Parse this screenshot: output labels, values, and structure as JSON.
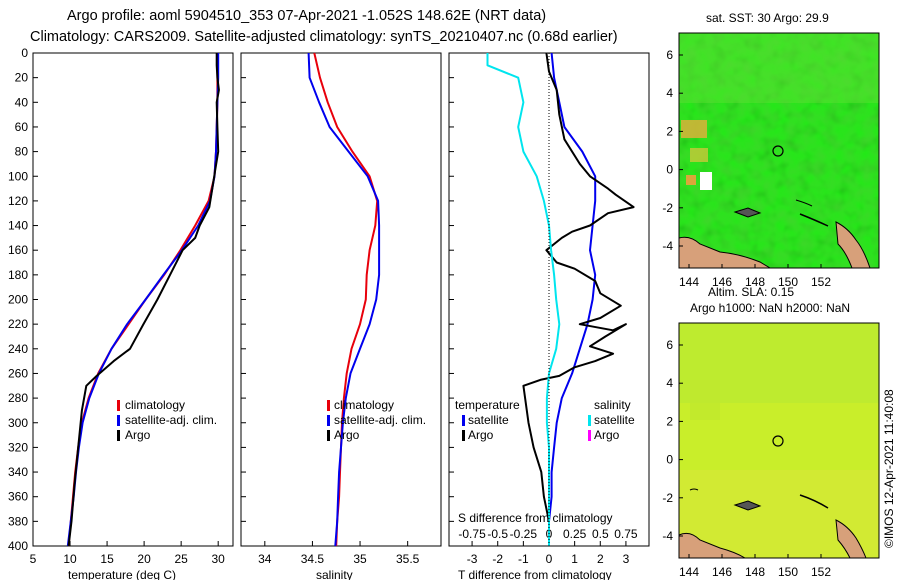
{
  "header": {
    "line1": "Argo profile: aoml 5904510_353 07-Apr-2021 -1.052S 148.62E (NRT data)",
    "line2": "Climatology: CARS2009. Satellite-adjusted climatology: synTS_20210407.nc (0.68d earlier)"
  },
  "colors": {
    "climatology": "#e8000b",
    "satellite": "#0000ee",
    "argo": "#000000",
    "satellite_salinity": "#00e5ee",
    "argo_salinity": "#ff00ff"
  },
  "chart_data": [
    {
      "type": "line",
      "name": "temperature",
      "xlabel": "temperature (deg C)",
      "ylabel": "",
      "xlim": [
        5,
        32
      ],
      "ylim": [
        400,
        0
      ],
      "xticks": [
        5,
        10,
        15,
        20,
        25,
        30
      ],
      "yticks": [
        0,
        20,
        40,
        60,
        80,
        100,
        120,
        140,
        160,
        180,
        200,
        220,
        240,
        260,
        280,
        300,
        320,
        340,
        360,
        380,
        400
      ],
      "legend": [
        "climatology",
        "satellite-adj. clim.",
        "Argo"
      ],
      "series": [
        {
          "name": "climatology",
          "points": [
            [
              29.9,
              0
            ],
            [
              29.9,
              20
            ],
            [
              29.9,
              40
            ],
            [
              29.8,
              60
            ],
            [
              29.7,
              80
            ],
            [
              29.5,
              100
            ],
            [
              28.7,
              120
            ],
            [
              26.9,
              140
            ],
            [
              24.9,
              160
            ],
            [
              22.7,
              180
            ],
            [
              20.2,
              200
            ],
            [
              17.9,
              220
            ],
            [
              15.6,
              240
            ],
            [
              13.8,
              260
            ],
            [
              12.5,
              280
            ],
            [
              11.6,
              300
            ],
            [
              11.1,
              320
            ],
            [
              10.7,
              340
            ],
            [
              10.4,
              360
            ],
            [
              10.1,
              380
            ],
            [
              9.8,
              400
            ]
          ]
        },
        {
          "name": "satellite-adj. clim.",
          "points": [
            [
              30.0,
              0
            ],
            [
              30.0,
              20
            ],
            [
              29.9,
              40
            ],
            [
              29.8,
              60
            ],
            [
              29.7,
              80
            ],
            [
              29.5,
              100
            ],
            [
              28.9,
              120
            ],
            [
              27.3,
              140
            ],
            [
              25.1,
              160
            ],
            [
              22.6,
              180
            ],
            [
              20.2,
              200
            ],
            [
              17.7,
              220
            ],
            [
              15.6,
              240
            ],
            [
              13.9,
              260
            ],
            [
              12.6,
              280
            ],
            [
              11.7,
              300
            ],
            [
              11.2,
              320
            ],
            [
              10.8,
              340
            ],
            [
              10.5,
              360
            ],
            [
              10.1,
              380
            ],
            [
              9.7,
              400
            ]
          ]
        },
        {
          "name": "Argo",
          "points": [
            [
              29.8,
              0
            ],
            [
              29.8,
              10
            ],
            [
              29.9,
              20
            ],
            [
              30.1,
              30
            ],
            [
              29.8,
              40
            ],
            [
              29.9,
              60
            ],
            [
              30.0,
              80
            ],
            [
              29.6,
              95
            ],
            [
              29.2,
              110
            ],
            [
              28.8,
              125
            ],
            [
              27.5,
              140
            ],
            [
              26.9,
              150
            ],
            [
              25.2,
              160
            ],
            [
              23.5,
              180
            ],
            [
              21.8,
              200
            ],
            [
              19.9,
              220
            ],
            [
              18.1,
              240
            ],
            [
              15.9,
              250
            ],
            [
              13.6,
              262
            ],
            [
              12.2,
              270
            ],
            [
              11.6,
              290
            ],
            [
              11.1,
              320
            ],
            [
              10.6,
              350
            ],
            [
              10.2,
              380
            ],
            [
              9.8,
              400
            ]
          ]
        }
      ]
    },
    {
      "type": "line",
      "name": "salinity",
      "xlabel": "salinity",
      "xlim": [
        33.75,
        35.85
      ],
      "ylim": [
        400,
        0
      ],
      "xticks": [
        34,
        34.5,
        35,
        35.5
      ],
      "legend": [
        "climatology",
        "satellite-adj. clim.",
        "Argo"
      ],
      "series": [
        {
          "name": "climatology",
          "points": [
            [
              34.52,
              0
            ],
            [
              34.58,
              20
            ],
            [
              34.66,
              40
            ],
            [
              34.76,
              60
            ],
            [
              34.92,
              80
            ],
            [
              35.1,
              100
            ],
            [
              35.18,
              120
            ],
            [
              35.16,
              140
            ],
            [
              35.1,
              160
            ],
            [
              35.07,
              180
            ],
            [
              35.06,
              200
            ],
            [
              35.0,
              220
            ],
            [
              34.91,
              240
            ],
            [
              34.86,
              260
            ],
            [
              34.83,
              280
            ],
            [
              34.81,
              300
            ],
            [
              34.8,
              320
            ],
            [
              34.79,
              340
            ],
            [
              34.78,
              360
            ],
            [
              34.76,
              380
            ],
            [
              34.75,
              400
            ]
          ]
        },
        {
          "name": "satellite-adj. clim.",
          "points": [
            [
              34.46,
              0
            ],
            [
              34.47,
              20
            ],
            [
              34.57,
              40
            ],
            [
              34.68,
              60
            ],
            [
              34.88,
              80
            ],
            [
              35.08,
              100
            ],
            [
              35.19,
              120
            ],
            [
              35.2,
              140
            ],
            [
              35.2,
              160
            ],
            [
              35.2,
              180
            ],
            [
              35.17,
              200
            ],
            [
              35.1,
              220
            ],
            [
              35.0,
              240
            ],
            [
              34.9,
              260
            ],
            [
              34.85,
              280
            ],
            [
              34.82,
              300
            ],
            [
              34.8,
              320
            ],
            [
              34.78,
              340
            ],
            [
              34.77,
              360
            ],
            [
              34.76,
              380
            ],
            [
              34.74,
              400
            ]
          ]
        }
      ]
    },
    {
      "type": "line",
      "name": "differences",
      "xlabel": "T difference from climatology",
      "xlabel_top": "S difference from climatology",
      "xlim": [
        -3.9,
        3.9
      ],
      "ylim": [
        400,
        0
      ],
      "xticks": [
        -3,
        -2,
        -1,
        0,
        1,
        2,
        3
      ],
      "sticks": [
        -0.75,
        -0.5,
        -0.25,
        0,
        0.25,
        0.5,
        0.75
      ],
      "stick_labels": [
        "-0.75",
        "-0.5",
        "-0.25",
        "0",
        "0.25",
        "0.5",
        "0.75"
      ],
      "legend_temperature": {
        "title": "temperature",
        "items": [
          "satellite",
          "Argo"
        ]
      },
      "legend_salinity": {
        "title": "salinity",
        "items": [
          "satellite",
          "Argo"
        ]
      },
      "series": [
        {
          "name": "satellite T",
          "points": [
            [
              0.1,
              0
            ],
            [
              0.2,
              20
            ],
            [
              0.4,
              40
            ],
            [
              0.6,
              60
            ],
            [
              1.3,
              80
            ],
            [
              1.8,
              100
            ],
            [
              1.8,
              120
            ],
            [
              1.7,
              140
            ],
            [
              1.6,
              160
            ],
            [
              1.8,
              180
            ],
            [
              1.7,
              200
            ],
            [
              1.5,
              220
            ],
            [
              1.2,
              240
            ],
            [
              0.9,
              260
            ],
            [
              0.5,
              280
            ],
            [
              0.3,
              300
            ],
            [
              0.2,
              320
            ],
            [
              0.1,
              340
            ],
            [
              0.1,
              360
            ],
            [
              0.0,
              380
            ],
            [
              0.0,
              400
            ]
          ]
        },
        {
          "name": "Argo T",
          "points": [
            [
              -0.1,
              0
            ],
            [
              0.0,
              15
            ],
            [
              0.3,
              30
            ],
            [
              0.4,
              50
            ],
            [
              0.6,
              70
            ],
            [
              1.2,
              90
            ],
            [
              1.6,
              100
            ],
            [
              2.3,
              110
            ],
            [
              2.6,
              115
            ],
            [
              3.3,
              125
            ],
            [
              2.3,
              130
            ],
            [
              1.6,
              140
            ],
            [
              0.9,
              145
            ],
            [
              0.5,
              150
            ],
            [
              -0.1,
              160
            ],
            [
              0.3,
              170
            ],
            [
              1.0,
              175
            ],
            [
              1.8,
              185
            ],
            [
              2.0,
              195
            ],
            [
              2.8,
              205
            ],
            [
              2.0,
              215
            ],
            [
              1.2,
              220
            ],
            [
              2.5,
              225
            ],
            [
              3.0,
              220
            ],
            [
              2.2,
              230
            ],
            [
              1.6,
              238
            ],
            [
              2.5,
              244
            ],
            [
              1.8,
              250
            ],
            [
              1.0,
              255
            ],
            [
              0.4,
              262
            ],
            [
              -0.3,
              265
            ],
            [
              -1.0,
              270
            ],
            [
              -0.8,
              300
            ],
            [
              -0.6,
              320
            ],
            [
              -0.3,
              340
            ],
            [
              -0.2,
              360
            ],
            [
              0.0,
              380
            ],
            [
              0.0,
              400
            ]
          ]
        },
        {
          "name": "satellite S",
          "points": [
            [
              -0.6,
              0
            ],
            [
              -0.6,
              10
            ],
            [
              -0.3,
              20
            ],
            [
              -0.25,
              40
            ],
            [
              -0.3,
              60
            ],
            [
              -0.25,
              80
            ],
            [
              -0.12,
              100
            ],
            [
              -0.05,
              120
            ],
            [
              0.0,
              140
            ],
            [
              0.02,
              160
            ],
            [
              0.05,
              180
            ],
            [
              0.07,
              200
            ],
            [
              0.1,
              220
            ],
            [
              0.07,
              240
            ],
            [
              0.0,
              260
            ],
            [
              -0.02,
              280
            ],
            [
              -0.02,
              300
            ],
            [
              0.0,
              320
            ],
            [
              0.0,
              340
            ],
            [
              0.0,
              360
            ],
            [
              0.0,
              380
            ],
            [
              0.0,
              400
            ]
          ]
        }
      ]
    }
  ],
  "maps": {
    "sst": {
      "title": "sat. SST: 30 Argo: 29.9",
      "yticks": [
        "6",
        "4",
        "2",
        "0",
        "-2",
        "-4"
      ],
      "xticks": [
        "144",
        "146",
        "148",
        "150",
        "152"
      ]
    },
    "sla": {
      "title1": "Altim. SLA: 0.15",
      "title2": "Argo h1000: NaN h2000: NaN",
      "yticks": [
        "6",
        "4",
        "2",
        "0",
        "-2",
        "-4"
      ],
      "xticks": [
        "144",
        "146",
        "148",
        "150",
        "152"
      ]
    }
  },
  "credit": "©IMOS 12-Apr-2021 11:40:08"
}
